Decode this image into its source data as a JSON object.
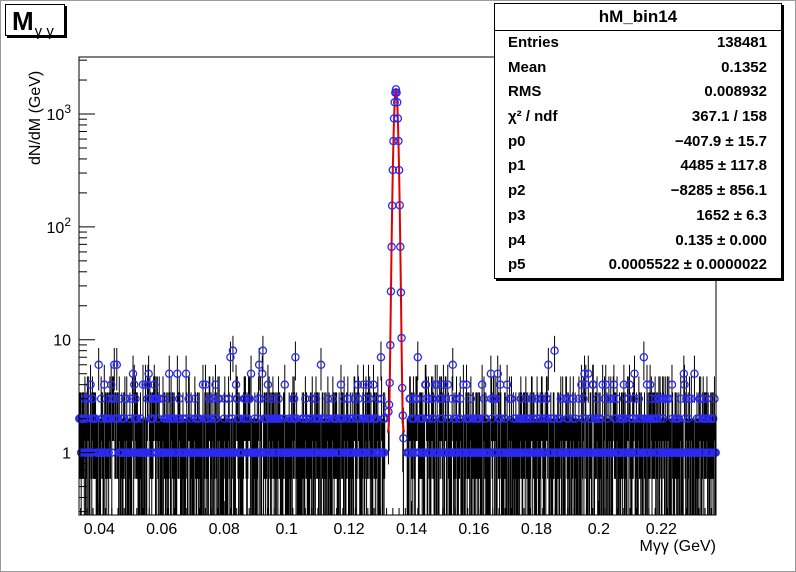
{
  "histogram_title": "M",
  "histogram_title_sub": "γ γ",
  "stats": {
    "name": "hM_bin14",
    "rows": [
      {
        "key": "Entries",
        "value": "138481"
      },
      {
        "key": "Mean",
        "value": "0.1352"
      },
      {
        "key": "RMS",
        "value": "0.008932"
      },
      {
        "key": "χ² / ndf",
        "value": "367.1 / 158"
      },
      {
        "key": "p0",
        "value": "−407.9 ± 15.7"
      },
      {
        "key": "p1",
        "value": "4485 ± 117.8"
      },
      {
        "key": "p2",
        "value": "−8285 ± 856.1"
      },
      {
        "key": "p3",
        "value": "1652 ± 6.3"
      },
      {
        "key": "p4",
        "value": "0.135 ± 0.000"
      },
      {
        "key": "p5",
        "value": "0.0005522 ± 0.0000022"
      }
    ]
  },
  "colors": {
    "markers": "#2a2af0",
    "errors": "#000000",
    "fit": "#e00000"
  },
  "chart_data": {
    "type": "scatter",
    "title": "M γ γ",
    "xlabel": "Mγγ (GeV)",
    "ylabel": "dN/dM (GeV)",
    "xlim": [
      0.0335,
      0.2375
    ],
    "ylim": [
      0.28,
      3200
    ],
    "y_scale": "log",
    "x_ticks": [
      {
        "value": 0.04,
        "label": "0.04"
      },
      {
        "value": 0.06,
        "label": "0.06"
      },
      {
        "value": 0.08,
        "label": "0.08"
      },
      {
        "value": 0.1,
        "label": "0.1"
      },
      {
        "value": 0.12,
        "label": "0.12"
      },
      {
        "value": 0.14,
        "label": "0.14"
      },
      {
        "value": 0.16,
        "label": "0.16"
      },
      {
        "value": 0.18,
        "label": "0.18"
      },
      {
        "value": 0.2,
        "label": "0.2"
      },
      {
        "value": 0.22,
        "label": "0.22"
      }
    ],
    "y_ticks": [
      {
        "value": 1,
        "label": "1"
      },
      {
        "value": 10,
        "label": "10"
      },
      {
        "value": 100,
        "label": "10²"
      },
      {
        "value": 1000,
        "label": "10³"
      }
    ],
    "peak": {
      "mean": 0.135,
      "sigma": 0.00055,
      "amplitude": 1652
    },
    "background_levels": [
      1,
      2,
      3,
      4,
      5
    ],
    "fit_curve": {
      "function": "pol2 + gaus",
      "p0": -407.9,
      "p1": 4485,
      "p2": -8285,
      "p3": 1652,
      "p4": 0.135,
      "p5": 0.0005522
    },
    "grid": false,
    "legend": "top-right"
  }
}
